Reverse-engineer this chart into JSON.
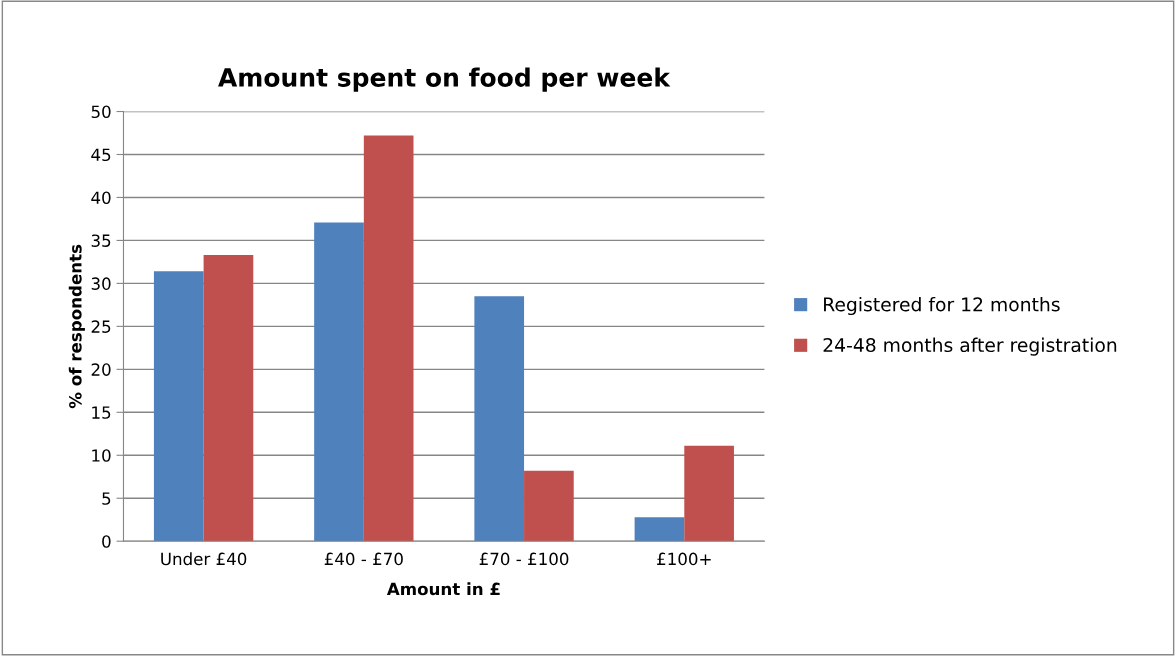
{
  "chart_data": {
    "type": "bar",
    "title": "Amount spent on food per week",
    "xlabel": "Amount in £",
    "ylabel": "% of respondents",
    "categories": [
      "Under £40",
      "£40 - £70",
      "£70 - £100",
      "£100+"
    ],
    "series": [
      {
        "name": "Registered for 12 months",
        "color": "#4f81bd",
        "values": [
          31.4,
          37.1,
          28.5,
          2.8
        ]
      },
      {
        "name": "24-48 months after registration",
        "color": "#c0504d",
        "values": [
          33.3,
          47.2,
          8.2,
          11.1
        ]
      }
    ],
    "ylim": [
      0,
      50
    ],
    "yticks": [
      0,
      5,
      10,
      15,
      20,
      25,
      30,
      35,
      40,
      45,
      50
    ],
    "grid": "y",
    "legend": "right"
  }
}
